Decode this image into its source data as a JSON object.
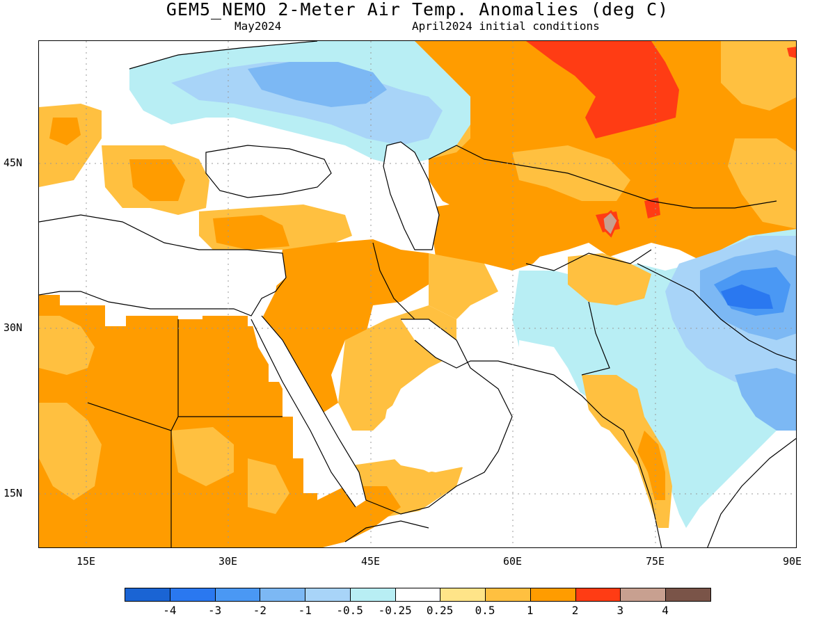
{
  "header": {
    "title": "GEM5_NEMO 2-Meter Air Temp. Anomalies (deg C)",
    "valid_month": "May2024",
    "initial_conditions": "April2024 initial conditions"
  },
  "map": {
    "region": "Middle East / South Asia",
    "lat_labels": [
      "45N",
      "30N",
      "15N"
    ],
    "lon_labels": [
      "15E",
      "30E",
      "45E",
      "60E",
      "75E",
      "90E"
    ],
    "lat_range": [
      10,
      55
    ],
    "lon_range": [
      10,
      90
    ]
  },
  "colorbar": {
    "colors": [
      "#1a64d4",
      "#2a78f0",
      "#4a98f4",
      "#7cb8f4",
      "#a8d4f8",
      "#b8eef4",
      "#ffffff",
      "#ffe488",
      "#ffc040",
      "#ff9c00",
      "#ff3c14",
      "#c8a090",
      "#7a5448"
    ],
    "tick_labels": [
      "-4",
      "-3",
      "-2",
      "-1",
      "-0.5",
      "-0.25",
      "0.25",
      "0.5",
      "1",
      "2",
      "3",
      "4"
    ]
  }
}
